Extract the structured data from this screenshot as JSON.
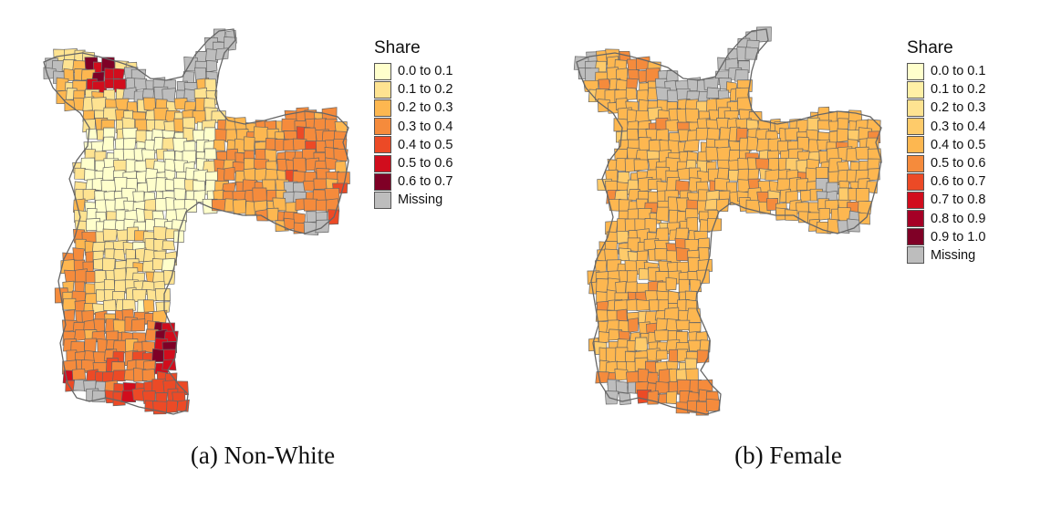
{
  "colors": {
    "border": "#666666",
    "missing": "#bdbdbd"
  },
  "maps": [
    {
      "id": "non-white",
      "caption": "(a) Non-White",
      "legend": {
        "title": "Share",
        "items": [
          {
            "label": "0.0 to 0.1",
            "color": "#ffffcc"
          },
          {
            "label": "0.1 to 0.2",
            "color": "#fee391"
          },
          {
            "label": "0.2 to 0.3",
            "color": "#fdb750"
          },
          {
            "label": "0.3 to 0.4",
            "color": "#f58b3c"
          },
          {
            "label": "0.4 to 0.5",
            "color": "#ec4a26"
          },
          {
            "label": "0.5 to 0.6",
            "color": "#d10d1d"
          },
          {
            "label": "0.6 to 0.7",
            "color": "#7f0026"
          },
          {
            "label": "Missing",
            "color": "#bdbdbd"
          }
        ]
      },
      "region_shares": {
        "north": 0.2,
        "northwest_hotspot": 0.6,
        "center": 0.05,
        "west": 0.15,
        "east": 0.3,
        "far_east": 0.35,
        "southwest": 0.3,
        "south": 0.35,
        "south_hotspot": 0.6,
        "far_south": 0.45
      }
    },
    {
      "id": "female",
      "caption": "(b) Female",
      "legend": {
        "title": "Share",
        "items": [
          {
            "label": "0.0 to 0.1",
            "color": "#ffffcc"
          },
          {
            "label": "0.1 to 0.2",
            "color": "#fff0a6"
          },
          {
            "label": "0.2 to 0.3",
            "color": "#fee391"
          },
          {
            "label": "0.3 to 0.4",
            "color": "#fecb6a"
          },
          {
            "label": "0.4 to 0.5",
            "color": "#fdb750"
          },
          {
            "label": "0.5 to 0.6",
            "color": "#f58b3c"
          },
          {
            "label": "0.6 to 0.7",
            "color": "#ec4a26"
          },
          {
            "label": "0.7 to 0.8",
            "color": "#d10d1d"
          },
          {
            "label": "0.8 to 0.9",
            "color": "#a50026"
          },
          {
            "label": "0.9 to 1.0",
            "color": "#7f0026"
          },
          {
            "label": "Missing",
            "color": "#bdbdbd"
          }
        ]
      },
      "region_shares": {
        "north": 0.45,
        "northwest_hotspot": 0.55,
        "center": 0.45,
        "west": 0.45,
        "east": 0.45,
        "far_east": 0.45,
        "southwest": 0.45,
        "south": 0.45,
        "south_hotspot": 0.45,
        "far_south": 0.55
      }
    }
  ]
}
